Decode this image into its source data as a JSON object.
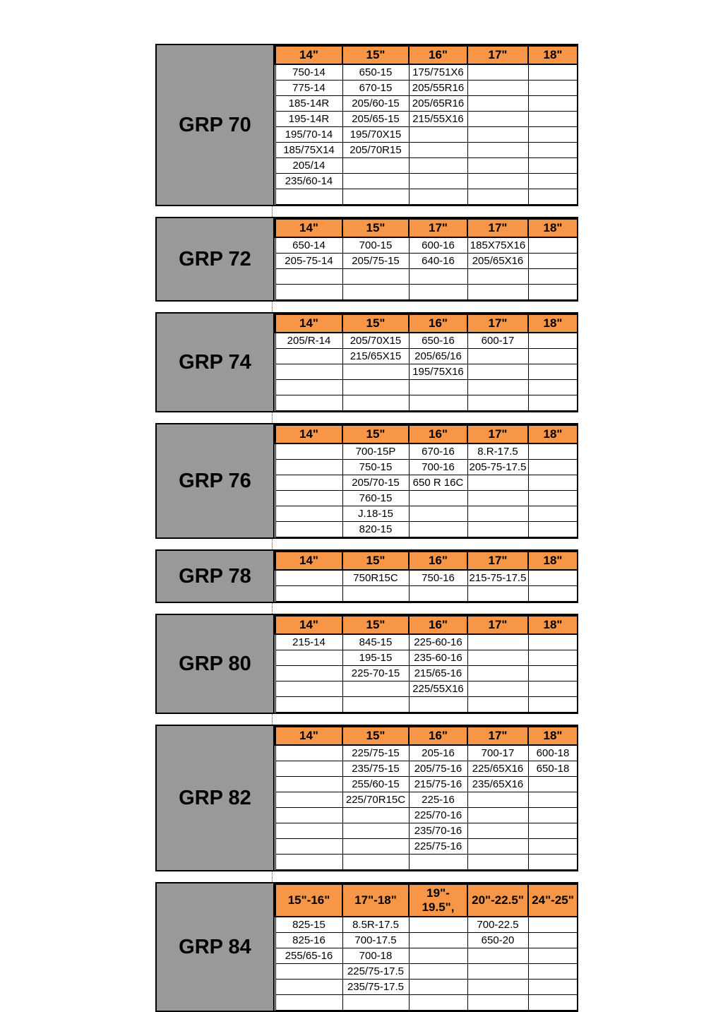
{
  "colors": {
    "header_bg": "#F79646",
    "label_bg": "#999999",
    "border": "#000000",
    "page_bg": "#FFFFFF"
  },
  "tables": [
    {
      "label": "GRP 70",
      "headers": [
        "14\"",
        "15\"",
        "16\"",
        "17\"",
        "18\""
      ],
      "rows": [
        [
          "750-14",
          "650-15",
          "175/751X6",
          "",
          ""
        ],
        [
          "775-14",
          "670-15",
          "205/55R16",
          "",
          ""
        ],
        [
          "185-14R",
          "205/60-15",
          "205/65R16",
          "",
          ""
        ],
        [
          "195-14R",
          "205/65-15",
          "215/55X16",
          "",
          ""
        ],
        [
          "195/70-14",
          "195/70X15",
          "",
          "",
          ""
        ],
        [
          "185/75X14",
          "205/70R15",
          "",
          "",
          ""
        ],
        [
          "205/14",
          "",
          "",
          "",
          ""
        ],
        [
          "235/60-14",
          "",
          "",
          "",
          ""
        ],
        [
          "",
          "",
          "",
          "",
          ""
        ]
      ]
    },
    {
      "label": "GRP 72",
      "headers": [
        "14\"",
        "15\"",
        "17\"",
        "17\"",
        "18\""
      ],
      "rows": [
        [
          "650-14",
          "700-15",
          "600-16",
          "185X75X16",
          ""
        ],
        [
          "205-75-14",
          "205/75-15",
          "640-16",
          "205/65X16",
          ""
        ],
        [
          "",
          "",
          "",
          "",
          ""
        ],
        [
          "",
          "",
          "",
          "",
          ""
        ]
      ]
    },
    {
      "label": "GRP 74",
      "headers": [
        "14\"",
        "15\"",
        "16\"",
        "17\"",
        "18\""
      ],
      "rows": [
        [
          "205/R-14",
          "205/70X15",
          "650-16",
          "600-17",
          ""
        ],
        [
          "",
          "215/65X15",
          "205/65/16",
          "",
          ""
        ],
        [
          "",
          "",
          "195/75X16",
          "",
          ""
        ],
        [
          "",
          "",
          "",
          "",
          ""
        ],
        [
          "",
          "",
          "",
          "",
          ""
        ]
      ]
    },
    {
      "label": "GRP 76",
      "headers": [
        "14\"",
        "15\"",
        "16\"",
        "17\"",
        "18\""
      ],
      "rows": [
        [
          "",
          "700-15P",
          "670-16",
          "8.R-17.5",
          ""
        ],
        [
          "",
          "750-15",
          "700-16",
          "205-75-17.5",
          ""
        ],
        [
          "",
          "205/70-15",
          "650 R 16C",
          "",
          ""
        ],
        [
          "",
          "760-15",
          "",
          "",
          ""
        ],
        [
          "",
          "J.18-15",
          "",
          "",
          ""
        ],
        [
          "",
          "820-15",
          "",
          "",
          ""
        ]
      ]
    },
    {
      "label": "GRP 78",
      "headers": [
        "14\"",
        "15\"",
        "16\"",
        "17\"",
        "18\""
      ],
      "rows": [
        [
          "",
          "750R15C",
          "750-16",
          "215-75-17.5",
          ""
        ],
        [
          "",
          "",
          "",
          "",
          ""
        ]
      ]
    },
    {
      "label": "GRP 80",
      "headers": [
        "14\"",
        "15\"",
        "16\"",
        "17\"",
        "18\""
      ],
      "rows": [
        [
          "215-14",
          "845-15",
          "225-60-16",
          "",
          ""
        ],
        [
          "",
          "195-15",
          "235-60-16",
          "",
          ""
        ],
        [
          "",
          "225-70-15",
          "215/65-16",
          "",
          ""
        ],
        [
          "",
          "",
          "225/55X16",
          "",
          ""
        ],
        [
          "",
          "",
          "",
          "",
          ""
        ]
      ]
    },
    {
      "label": "GRP 82",
      "headers": [
        "14\"",
        "15\"",
        "16\"",
        "17\"",
        "18\""
      ],
      "rows": [
        [
          "",
          "225/75-15",
          "205-16",
          "700-17",
          "600-18"
        ],
        [
          "",
          "235/75-15",
          "205/75-16",
          "225/65X16",
          "650-18"
        ],
        [
          "",
          "255/60-15",
          "215/75-16",
          "235/65X16",
          ""
        ],
        [
          "",
          "225/70R15C",
          "225-16",
          "",
          ""
        ],
        [
          "",
          "",
          "225/70-16",
          "",
          ""
        ],
        [
          "",
          "",
          "235/70-16",
          "",
          ""
        ],
        [
          "",
          "",
          "225/75-16",
          "",
          ""
        ],
        [
          "",
          "",
          "",
          "",
          ""
        ]
      ]
    },
    {
      "label": "GRP 84",
      "headers": [
        "15\"-16\"",
        "17\"-18\"",
        "19\"-\n19.5\",",
        "20\"-22.5\"",
        "24\"-25\""
      ],
      "rows": [
        [
          "825-15",
          "8.5R-17.5",
          "",
          "700-22.5",
          ""
        ],
        [
          "825-16",
          "700-17.5",
          "",
          "650-20",
          ""
        ],
        [
          "255/65-16",
          "700-18",
          "",
          "",
          ""
        ],
        [
          "",
          "225/75-17.5",
          "",
          "",
          ""
        ],
        [
          "",
          "235/75-17.5",
          "",
          "",
          ""
        ],
        [
          "",
          "",
          "",
          "",
          ""
        ]
      ]
    }
  ]
}
